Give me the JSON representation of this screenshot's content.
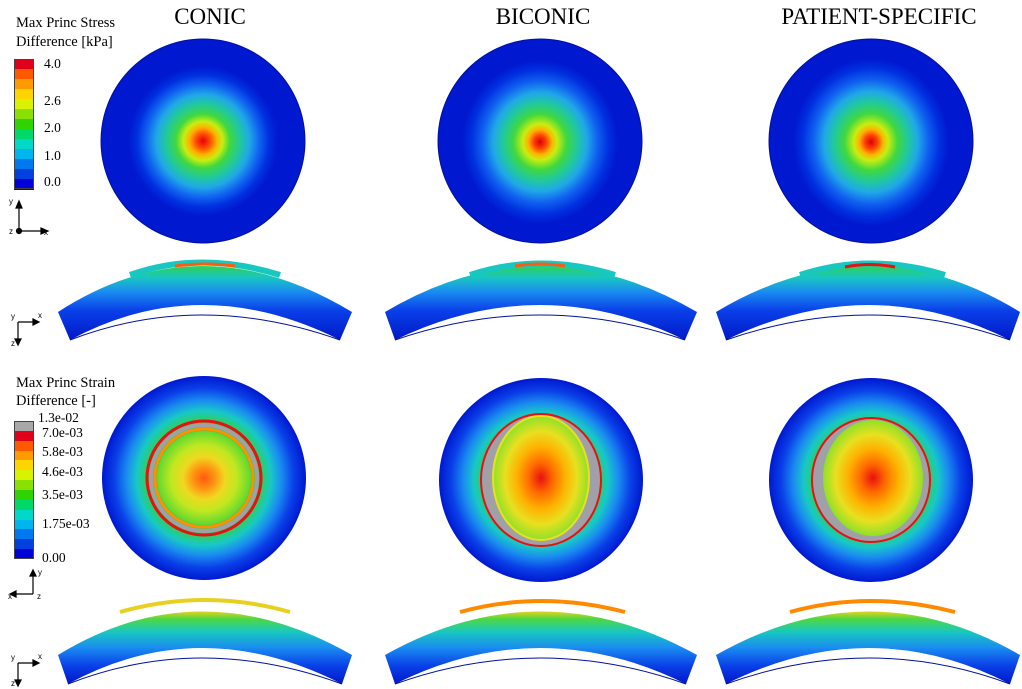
{
  "columns": [
    "CONIC",
    "BICONIC",
    "PATIENT-SPECIFIC"
  ],
  "stress_legend": {
    "title_line1": "Max Princ Stress",
    "title_line2": "Difference [kPa]",
    "ticks": [
      "4.0",
      "2.6",
      "2.0",
      "1.0",
      "0.0"
    ],
    "colors": [
      "#e0001a",
      "#ff5a00",
      "#ff9a00",
      "#ffd400",
      "#d8f200",
      "#8ae000",
      "#2fd400",
      "#00d86a",
      "#00d8c8",
      "#00b4f0",
      "#0078f0",
      "#0040e0",
      "#0000d8"
    ]
  },
  "strain_legend": {
    "title_line1": "Max Princ Strain",
    "title_line2": "Difference [-]",
    "ticks": [
      "1.3e-02",
      "7.0e-03",
      "5.8e-03",
      "4.6e-03",
      "3.5e-03",
      "1.75e-03",
      "0.00"
    ],
    "colors": [
      "#a8a8a8",
      "#e0001a",
      "#ff5a00",
      "#ff9a00",
      "#ffd400",
      "#d8f200",
      "#8ae000",
      "#2fd400",
      "#00d86a",
      "#00d8c8",
      "#00b4f0",
      "#0078f0",
      "#0040e0",
      "#0000d8"
    ]
  },
  "axes": {
    "top_x": "x",
    "top_y": "y",
    "top_z": "z",
    "side1_x": "x",
    "side1_y": "y",
    "side1_z": "z",
    "strain_top_x": "x",
    "strain_top_y": "y",
    "strain_top_z": "z",
    "side2_x": "x",
    "side2_y": "y",
    "side2_z": "z"
  },
  "colors": {
    "dark_blue": "#0018d8",
    "blue": "#0a3ef0",
    "light_blue": "#1c8cf2",
    "cyan": "#18d8d0",
    "green": "#30d04a",
    "yellow_green": "#a8e818",
    "yellow": "#f0e020",
    "orange": "#ff8a00",
    "red": "#e81010",
    "gray": "#a0a0a8"
  }
}
